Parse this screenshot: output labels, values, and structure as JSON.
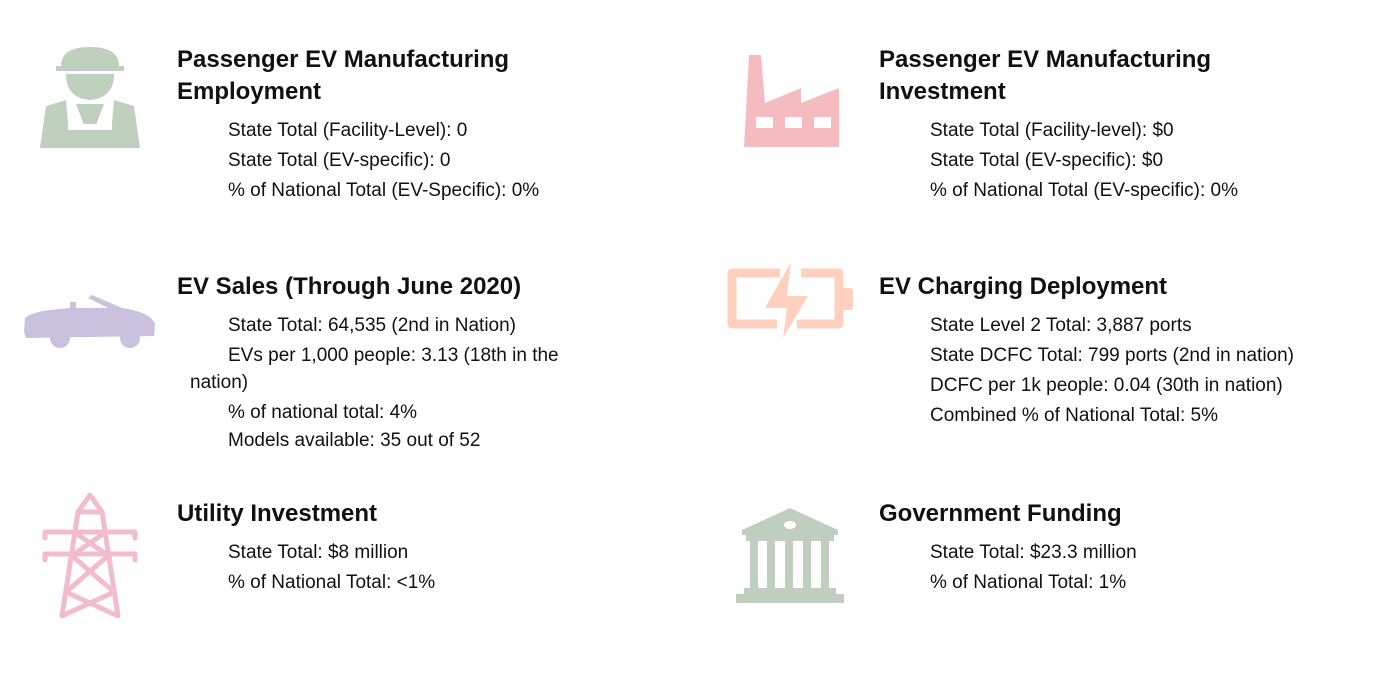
{
  "colors": {
    "worker": "#bfd0bf",
    "car": "#c9c1dd",
    "tower": "#f2bccd",
    "factory": "#f5bcbf",
    "battery": "#fed0bd",
    "bank": "#bfcebf"
  },
  "sections": [
    {
      "icon": "worker-icon",
      "title1": "Passenger EV Manufacturing",
      "title2": "Employment",
      "lines": [
        "State Total (Facility-Level): 0",
        "State Total (EV-specific): 0",
        "% of National Total (EV-Specific): 0%"
      ]
    },
    {
      "icon": "factory-icon",
      "title1": "Passenger EV Manufacturing",
      "title2": "Investment",
      "lines": [
        "State Total (Facility-level): $0",
        "State Total (EV-specific): $0",
        "% of National Total (EV-specific): 0%"
      ]
    },
    {
      "icon": "car-icon",
      "title1": "EV Sales (Through June 2020)",
      "lines": [
        "State Total: 64,535 (2nd in Nation)",
        "EVs per 1,000 people:  3.13 (18th in the",
        "nation)",
        "% of national total: 4%",
        "Models available: 35 out of 52"
      ]
    },
    {
      "icon": "battery-charging-icon",
      "title1": "EV Charging Deployment",
      "lines": [
        "State Level 2 Total: 3,887 ports",
        "State DCFC Total: 799 ports (2nd in nation)",
        "DCFC per 1k people: 0.04 (30th in nation)",
        "Combined % of National Total: 5%"
      ]
    },
    {
      "icon": "transmission-tower-icon",
      "title1": "Utility Investment",
      "lines": [
        "State Total: $8 million",
        "% of National Total: <1%"
      ]
    },
    {
      "icon": "government-building-icon",
      "title1": "Government Funding",
      "lines": [
        "State Total: $23.3 million",
        "% of National Total: 1%"
      ]
    }
  ]
}
